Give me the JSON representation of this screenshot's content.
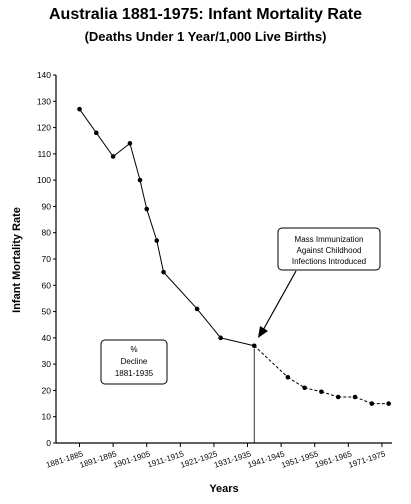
{
  "header": {
    "title": "Australia 1881-1975: Infant Mortality Rate",
    "subtitle": "(Deaths Under 1 Year/1,000 Live Births)"
  },
  "chart_data": {
    "type": "line",
    "ylabel": "Infant Mortality Rate",
    "xlabel": "Years",
    "ylim": [
      0,
      140
    ],
    "yticks": [
      0,
      10,
      20,
      30,
      40,
      50,
      60,
      70,
      80,
      90,
      100,
      110,
      120,
      130,
      140
    ],
    "xlim": [
      1876,
      1976
    ],
    "xtick_labels": [
      {
        "label": "1881-1885",
        "x": 1883
      },
      {
        "label": "1891-1895",
        "x": 1893
      },
      {
        "label": "1901-1905",
        "x": 1903
      },
      {
        "label": "1911-1915",
        "x": 1913
      },
      {
        "label": "1921-1925",
        "x": 1923
      },
      {
        "label": "1931-1935",
        "x": 1933
      },
      {
        "label": "1941-1945",
        "x": 1943
      },
      {
        "label": "1951-1955",
        "x": 1953
      },
      {
        "label": "1961-1965",
        "x": 1963
      },
      {
        "label": "1971-1975",
        "x": 1973
      }
    ],
    "series": [
      {
        "x": [
          1883,
          1888,
          1893,
          1898,
          1901,
          1903,
          1906,
          1908,
          1918,
          1925,
          1935,
          1945,
          1950,
          1955,
          1960,
          1965,
          1970,
          1975
        ],
        "y": [
          127,
          118,
          109,
          114,
          100,
          89,
          77,
          65,
          51,
          40,
          37,
          25,
          21,
          19.5,
          17.5,
          17.5,
          15,
          15
        ],
        "solid_until_x": 1935
      }
    ],
    "event_line_x": 1935,
    "annotations": {
      "immunization": [
        "Mass Immunization",
        "Against Childhood",
        "Infections Introduced"
      ],
      "decline_box": [
        "%",
        "Decline",
        "1881-1935"
      ]
    }
  }
}
